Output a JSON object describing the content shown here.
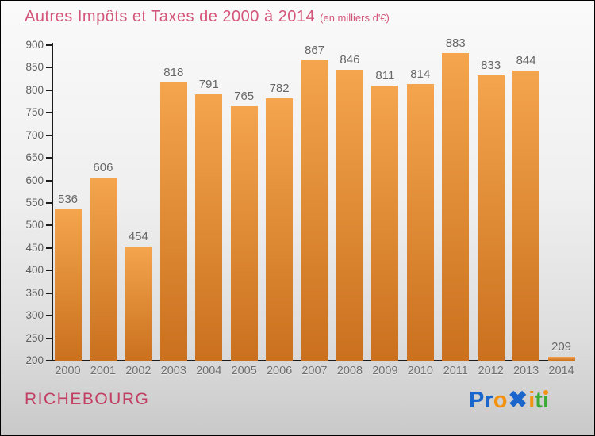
{
  "header": {
    "title": "Autres Impôts et Taxes de 2000 à 2014",
    "subtitle": "(en milliers d'€)",
    "title_color": "#d4567a"
  },
  "chart_data": {
    "type": "bar",
    "title": "Autres Impôts et Taxes de 2000 à 2014",
    "subtitle": "(en milliers d'€)",
    "categories": [
      "2000",
      "2001",
      "2002",
      "2003",
      "2004",
      "2005",
      "2006",
      "2007",
      "2008",
      "2009",
      "2010",
      "2011",
      "2012",
      "2013",
      "2014"
    ],
    "values": [
      536,
      606,
      454,
      818,
      791,
      765,
      782,
      867,
      846,
      811,
      814,
      883,
      833,
      844,
      209
    ],
    "xlabel": "",
    "ylabel": "",
    "ylim": [
      200,
      900
    ],
    "ytick_step": 50,
    "grid": false,
    "legend": false,
    "value_labels_shown": true,
    "bar_color_top": "#f4a54d",
    "bar_color_bottom": "#ca701e",
    "axis_color": "#1c1c1c",
    "y_tick_label_color": "#5d5d5d",
    "x_tick_label_color": "#6e6e6e",
    "value_label_color": "#666666"
  },
  "footer": {
    "place_name": "RICHEBOURG",
    "place_color": "#c23e63",
    "logo": {
      "name": "Proxiti",
      "letters": [
        {
          "ch": "P",
          "color": "#1a66cc"
        },
        {
          "ch": "r",
          "color": "#1a66cc"
        },
        {
          "ch": "o",
          "color": "#f3920f"
        },
        {
          "ch": "✖",
          "color": "#1a66cc",
          "x_glyph": true
        },
        {
          "ch": "i",
          "color": "#f3920f"
        },
        {
          "ch": "t",
          "color": "#3aaa35"
        },
        {
          "ch": "i",
          "color": "#3aaa35",
          "dot_color": "#f3920f"
        }
      ]
    }
  }
}
